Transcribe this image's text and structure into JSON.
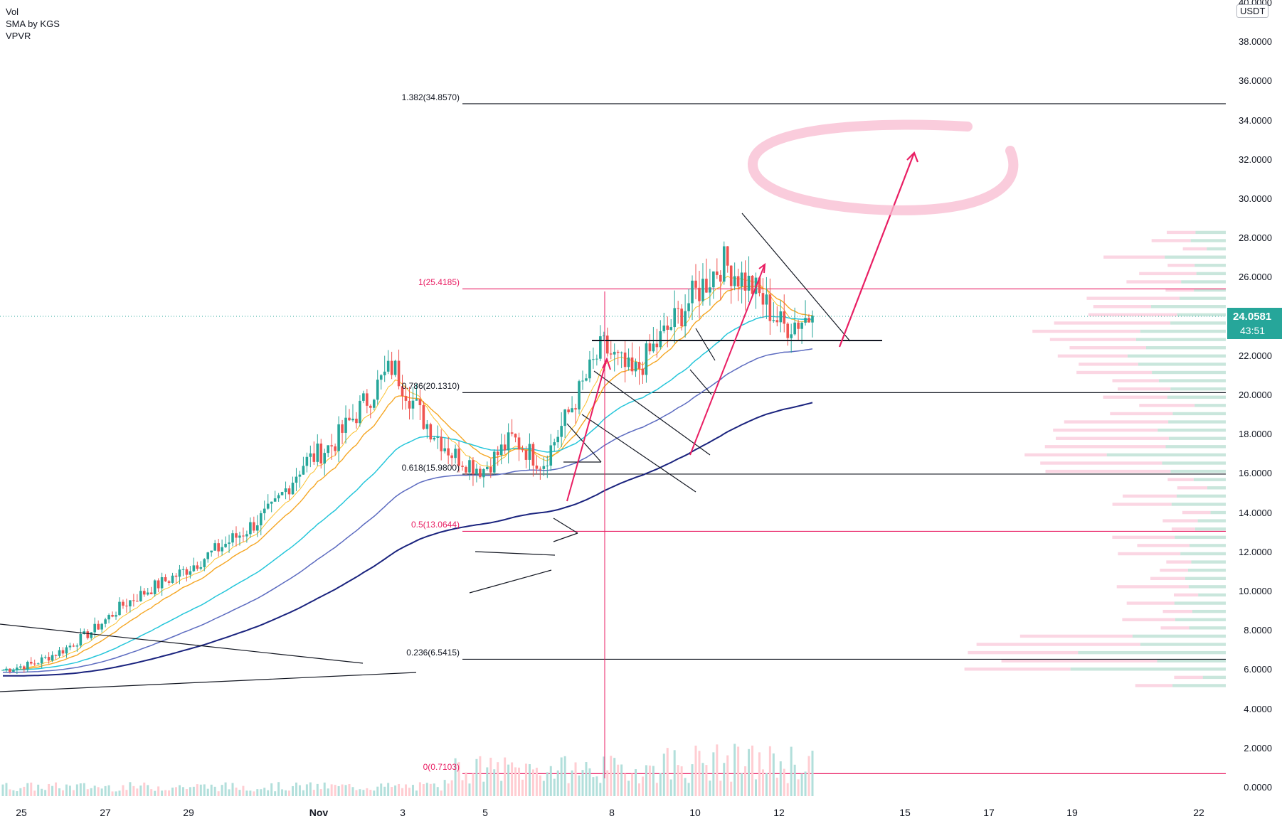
{
  "legend": {
    "items": [
      "Vol",
      "SMA by KGS",
      "VPVR"
    ]
  },
  "price_axis": {
    "unit": "USDT",
    "ticks": [
      "40.0000",
      "38.0000",
      "36.0000",
      "34.0000",
      "32.0000",
      "30.0000",
      "28.0000",
      "26.0000",
      "22.0000",
      "20.0000",
      "18.0000",
      "16.0000",
      "14.0000",
      "12.0000",
      "10.0000",
      "8.0000",
      "6.0000",
      "4.0000",
      "2.0000",
      "0.0000"
    ],
    "current_price": "24.0581",
    "countdown": "43:51"
  },
  "colors": {
    "up": "#26a69a",
    "down": "#ef5350",
    "fib_pink": "#e91e63",
    "fib_black": "#131722",
    "sma_cyan": "#26c6da",
    "sma_orange": "#f5a623",
    "sma_blue": "#5c6bc0",
    "sma_navy": "#1a237e",
    "vp_up": "#a5d6c4",
    "vp_down": "#f8bbd0",
    "annotation": "#e91e63"
  },
  "chart_data": {
    "type": "candlestick",
    "y_range": [
      -0.8,
      40.5
    ],
    "x_ticks": [
      "25",
      "27",
      "29",
      "Nov",
      "3",
      "5",
      "8",
      "10",
      "12",
      "15",
      "17",
      "19",
      "22"
    ],
    "fib_levels": [
      {
        "label": "1.382(34.8570)",
        "price": 34.857,
        "color": "black"
      },
      {
        "label": "1(25.4185)",
        "price": 25.4185,
        "color": "pink"
      },
      {
        "label": "0.786(20.1310)",
        "price": 20.131,
        "color": "black"
      },
      {
        "label": "0.618(15.9800)",
        "price": 15.98,
        "color": "black"
      },
      {
        "label": "0.5(13.0644)",
        "price": 13.0644,
        "color": "pink"
      },
      {
        "label": "0.236(6.5415)",
        "price": 6.5415,
        "color": "black"
      },
      {
        "label": "0(0.7103)",
        "price": 0.7103,
        "color": "pink"
      }
    ],
    "horizontal_support": 22.8,
    "key_prices": [
      6.0,
      6.3,
      7.0,
      8.0,
      9.3,
      10.2,
      11.0,
      12.0,
      13.0,
      14.2,
      16.5,
      17.5,
      19.5,
      21.5,
      18.8,
      17.0,
      16.2,
      17.8,
      16.5,
      19.5,
      22.5,
      21.0,
      23.0,
      25.0,
      26.8,
      25.5,
      23.5,
      24.0581
    ],
    "sma": [
      {
        "name": "SMA fast",
        "color": "#f5a623"
      },
      {
        "name": "SMA cyan",
        "color": "#26c6da"
      },
      {
        "name": "SMA blue",
        "color": "#5c6bc0"
      },
      {
        "name": "SMA navy",
        "color": "#1a237e"
      }
    ]
  }
}
